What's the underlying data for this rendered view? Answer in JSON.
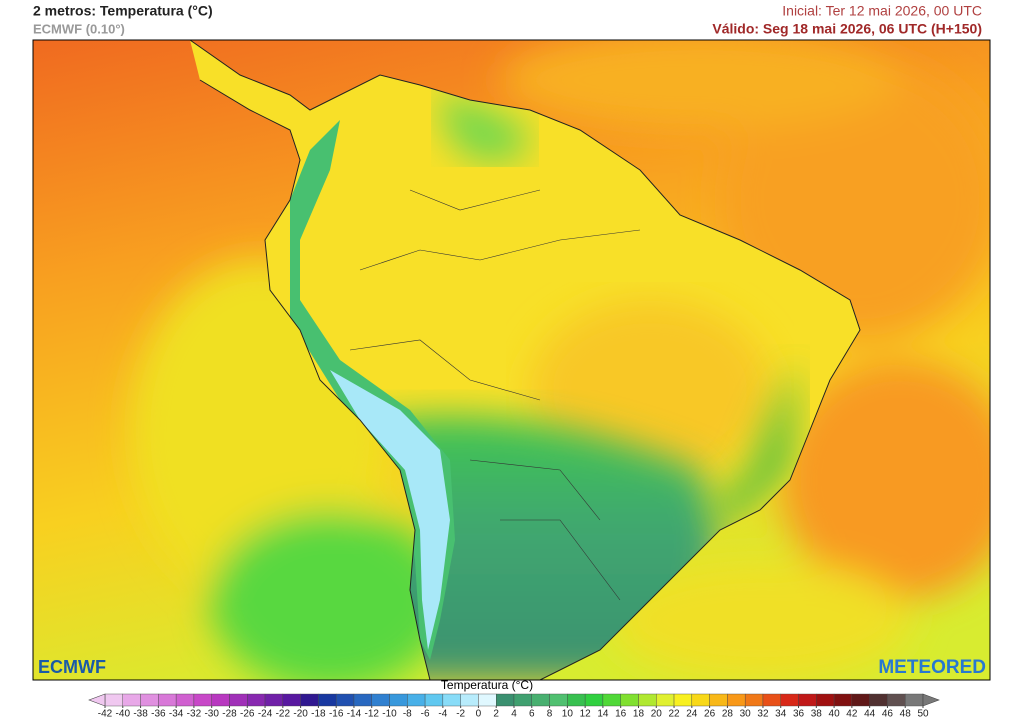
{
  "header": {
    "title": "2 metros: Temperatura (°C)",
    "subtitle": "ECMWF (0.10°)",
    "initial": "Inicial: Ter 12 mai 2026, 00 UTC",
    "valid": "Válido: Seg 18 mai 2026, 06 UTC (H+150)"
  },
  "logos": {
    "left": "ECMWF",
    "right": "METEORED"
  },
  "colorbar": {
    "label": "Temperatura (°C)",
    "ticks": [
      -42,
      -40,
      -38,
      -36,
      -34,
      -32,
      -30,
      -28,
      -26,
      -24,
      -22,
      -20,
      -18,
      -16,
      -14,
      -12,
      -10,
      -8,
      -6,
      -4,
      -2,
      0,
      2,
      4,
      6,
      8,
      10,
      12,
      14,
      16,
      18,
      20,
      22,
      24,
      26,
      28,
      30,
      32,
      34,
      36,
      38,
      40,
      42,
      44,
      46,
      48,
      50
    ],
    "colors": [
      "#f0c8f0",
      "#e8a8e8",
      "#e090e0",
      "#d878d8",
      "#d060d0",
      "#c848c8",
      "#b838c0",
      "#a030b8",
      "#8828b0",
      "#7020a8",
      "#5818a0",
      "#301890",
      "#1838a0",
      "#2050b0",
      "#2868c0",
      "#3080d0",
      "#3898dc",
      "#48b0e8",
      "#60c8f0",
      "#88dcf8",
      "#b8ecfc",
      "#e0f8ff",
      "#3a9070",
      "#40a070",
      "#48b070",
      "#50c070",
      "#38c050",
      "#30d040",
      "#50d838",
      "#80e030",
      "#b0e830",
      "#e0f030",
      "#f8f020",
      "#f8d818",
      "#f8b818",
      "#f89818",
      "#f07818",
      "#e85018",
      "#d82818",
      "#c01818",
      "#a01010",
      "#801010",
      "#601818",
      "#503030",
      "#605050",
      "#787878"
    ]
  }
}
